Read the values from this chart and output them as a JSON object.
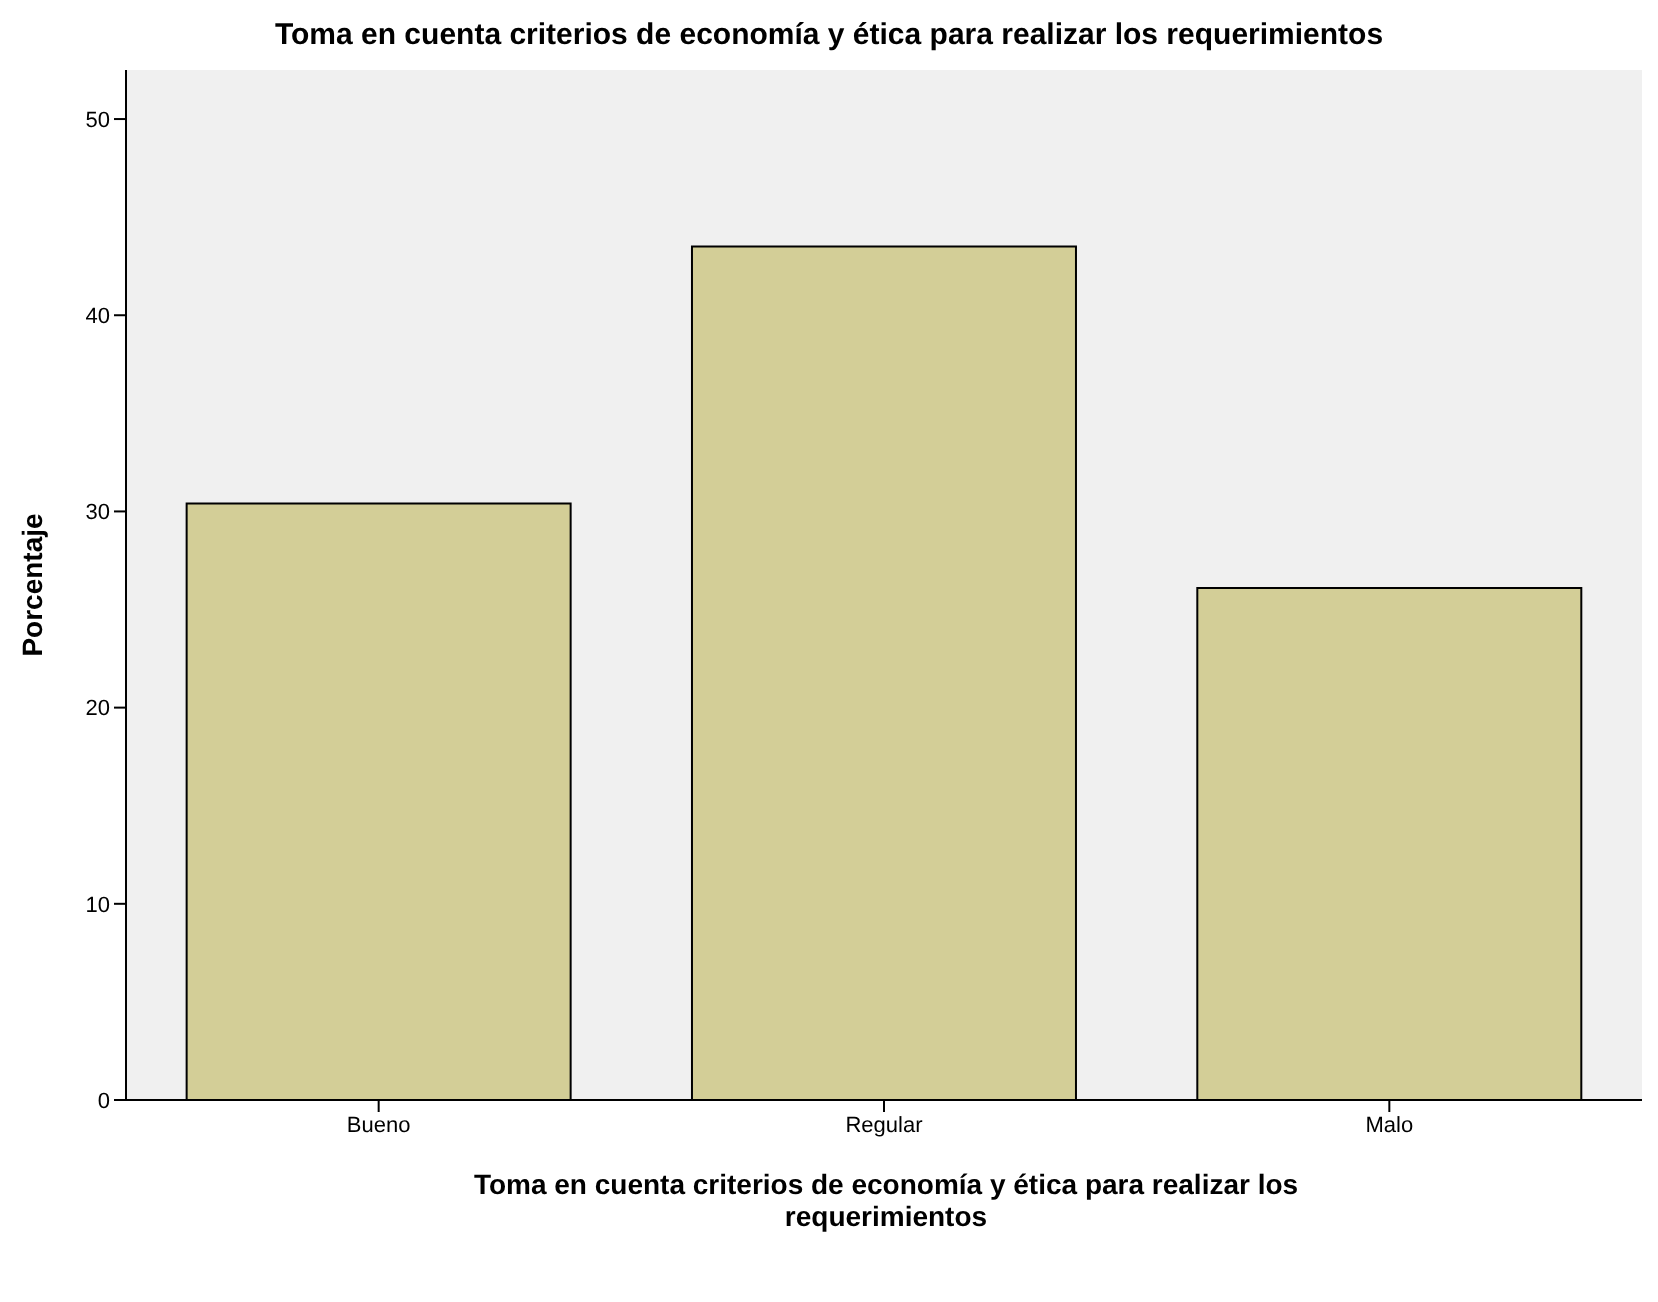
{
  "chart_data": {
    "type": "bar",
    "title": "Toma en cuenta criterios de economía y ética para realizar los requerimientos",
    "xlabel": "Toma en cuenta criterios de economía y ética para realizar los requerimientos",
    "ylabel": "Porcentaje",
    "categories": [
      "Bueno",
      "Regular",
      "Malo"
    ],
    "values": [
      30.4,
      43.5,
      26.1
    ],
    "color": "#d3ce97",
    "ylim": [
      0,
      52.5
    ],
    "yticks": [
      0,
      10,
      20,
      30,
      40,
      50
    ],
    "grid": false
  }
}
